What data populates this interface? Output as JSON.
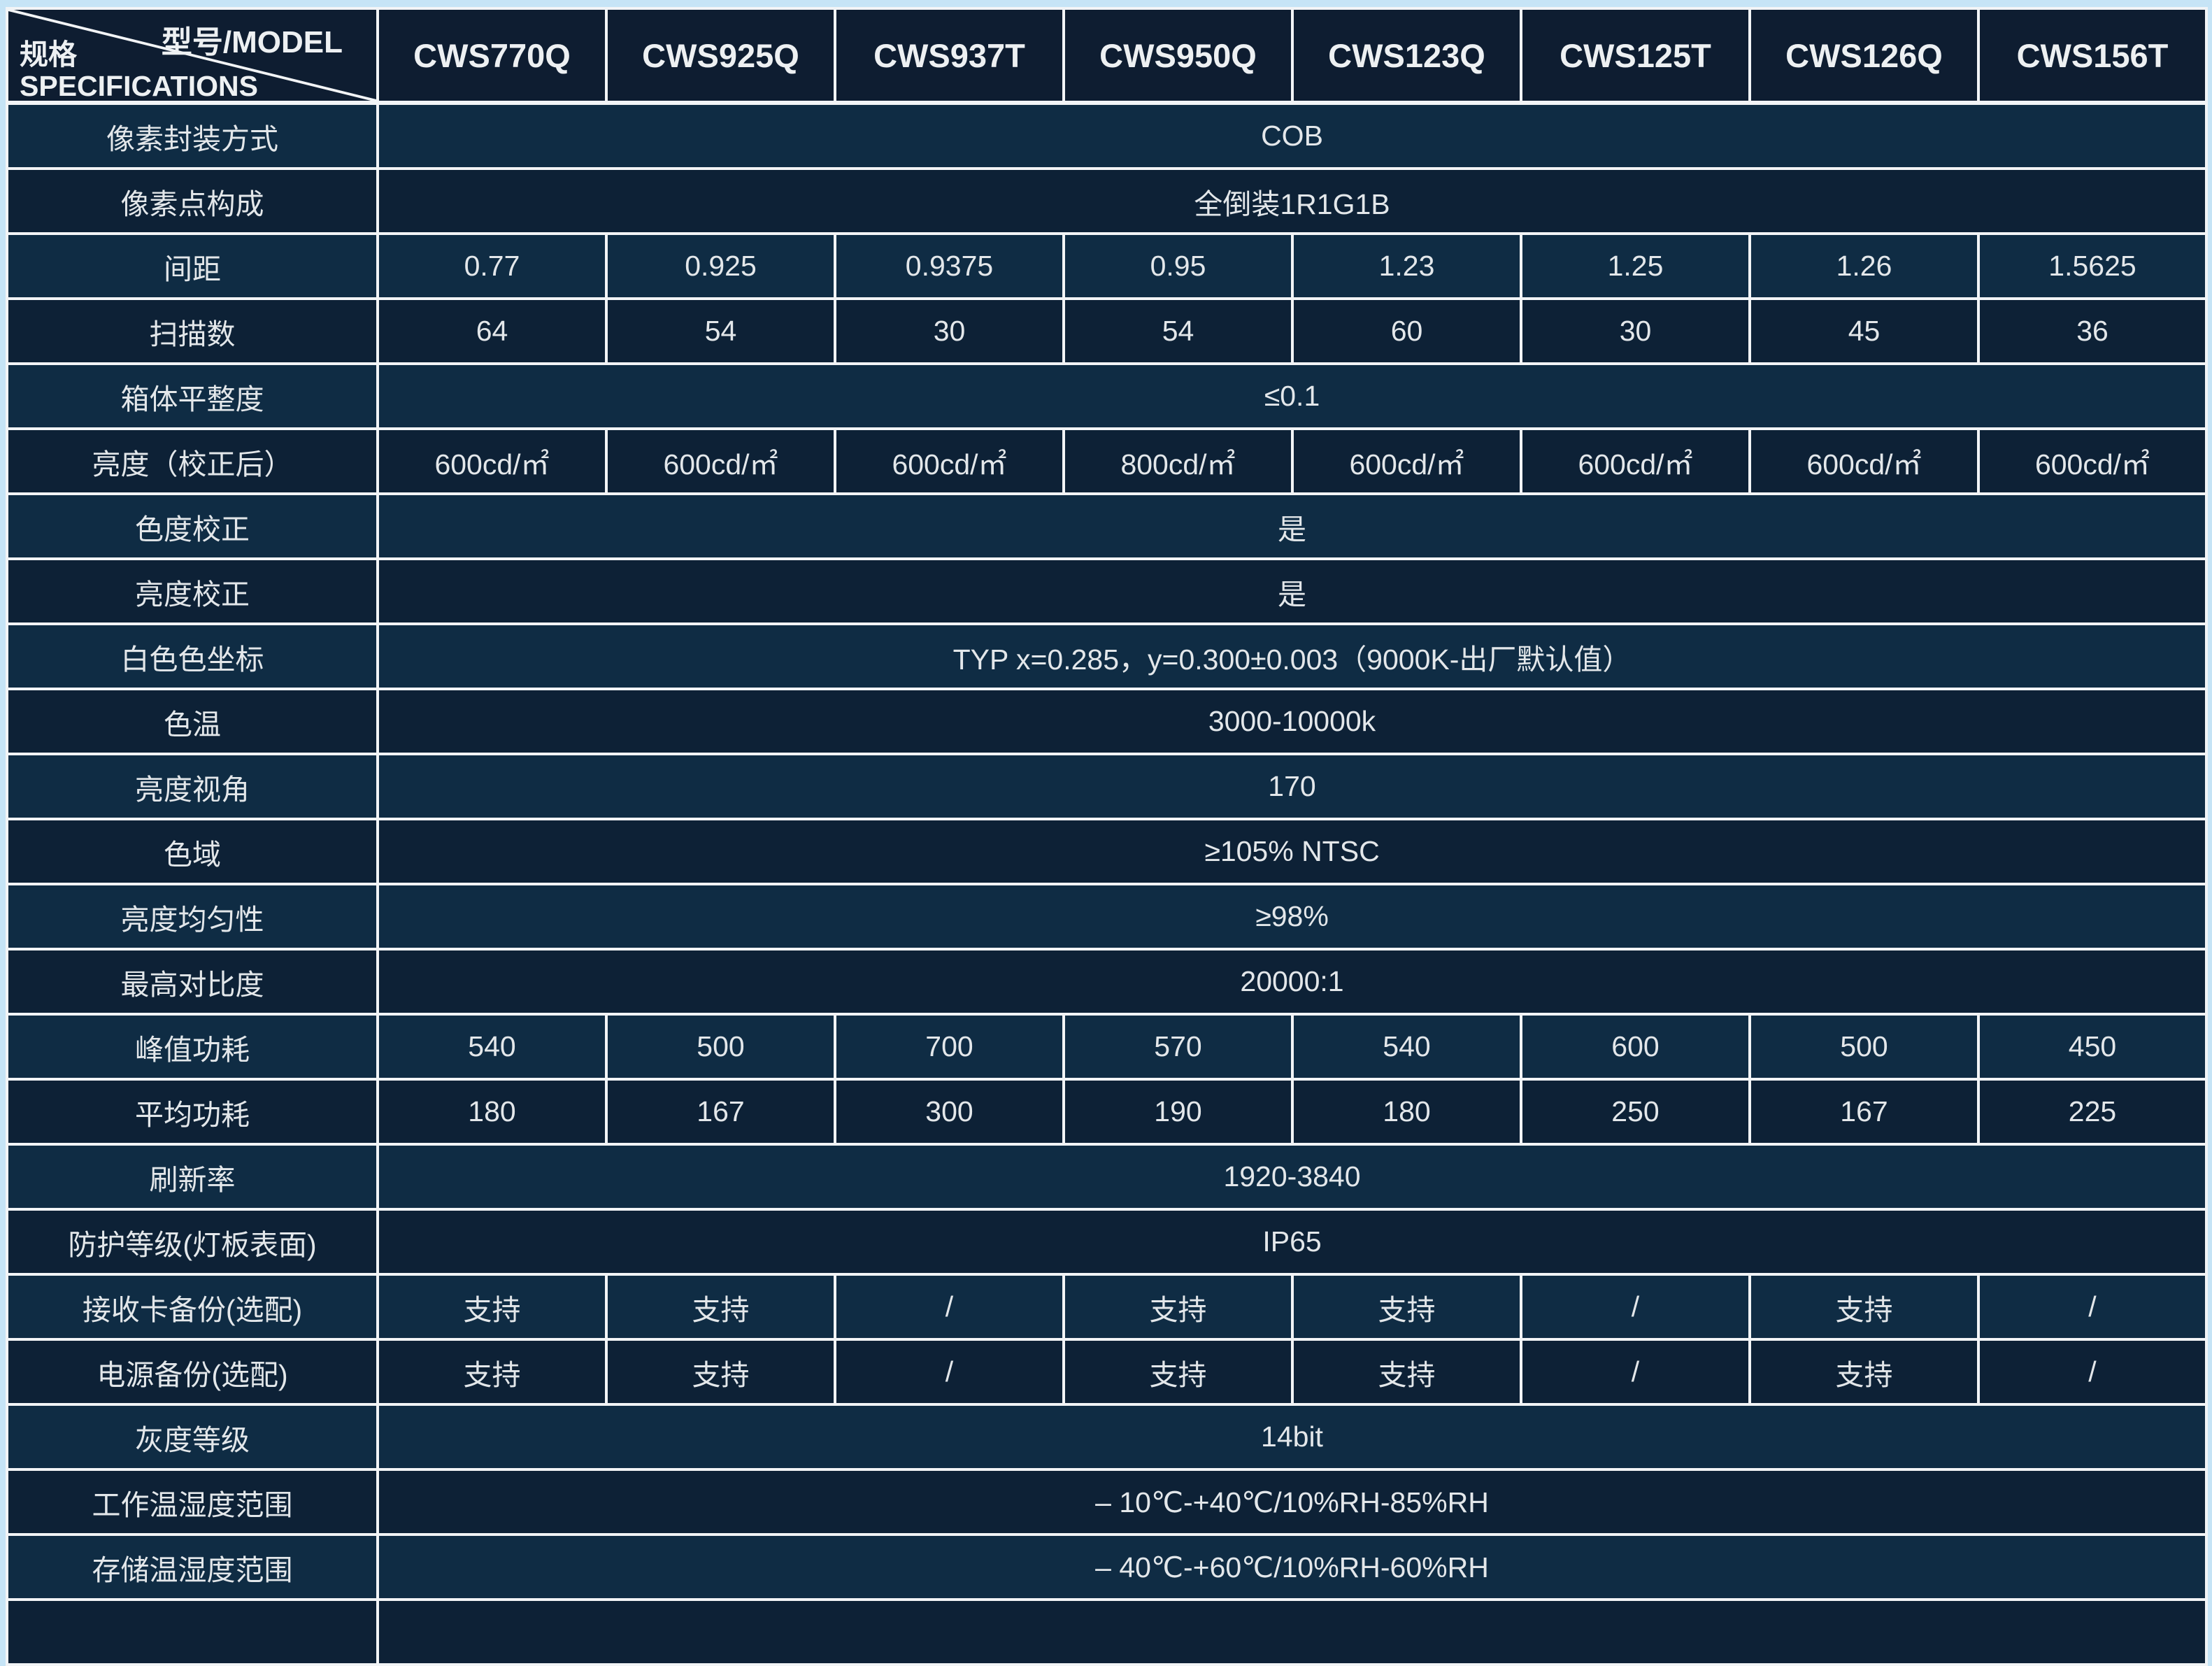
{
  "colors": {
    "outer_frame": "#c6e4f6",
    "header_bg": "#0e1d31",
    "row_light_bg": "#0f2c44",
    "row_dark_bg": "#0d2136",
    "grid_line": "#f2f4f6",
    "text": "#e3e7ea"
  },
  "table": {
    "corner": {
      "top_right": "型号/MODEL",
      "left_line1": "规格",
      "left_line2": "SPECIFICATIONS"
    },
    "models": [
      "CWS770Q",
      "CWS925Q",
      "CWS937T",
      "CWS950Q",
      "CWS123Q",
      "CWS125T",
      "CWS126Q",
      "CWS156T"
    ],
    "rows": [
      {
        "label": "像素封装方式",
        "value": "COB"
      },
      {
        "label": "像素点构成",
        "value": "全倒装1R1G1B"
      },
      {
        "label": "间距",
        "values": [
          "0.77",
          "0.925",
          "0.9375",
          "0.95",
          "1.23",
          "1.25",
          "1.26",
          "1.5625"
        ]
      },
      {
        "label": "扫描数",
        "values": [
          "64",
          "54",
          "30",
          "54",
          "60",
          "30",
          "45",
          "36"
        ]
      },
      {
        "label": "箱体平整度",
        "value": "≤0.1"
      },
      {
        "label": "亮度（校正后）",
        "values": [
          "600cd/㎡",
          "600cd/㎡",
          "600cd/㎡",
          "800cd/㎡",
          "600cd/㎡",
          "600cd/㎡",
          "600cd/㎡",
          "600cd/㎡"
        ]
      },
      {
        "label": "色度校正",
        "value": "是"
      },
      {
        "label": "亮度校正",
        "value": "是"
      },
      {
        "label": "白色色坐标",
        "value": "TYP x=0.285，y=0.300±0.003（9000K-出厂默认值）"
      },
      {
        "label": "色温",
        "value": "3000-10000k"
      },
      {
        "label": "亮度视角",
        "value": "170"
      },
      {
        "label": "色域",
        "value": "≥105% NTSC"
      },
      {
        "label": "亮度均匀性",
        "value": "≥98%"
      },
      {
        "label": "最高对比度",
        "value": "20000:1"
      },
      {
        "label": "峰值功耗",
        "values": [
          "540",
          "500",
          "700",
          "570",
          "540",
          "600",
          "500",
          "450"
        ]
      },
      {
        "label": "平均功耗",
        "values": [
          "180",
          "167",
          "300",
          "190",
          "180",
          "250",
          "167",
          "225"
        ]
      },
      {
        "label": "刷新率",
        "value": "1920-3840"
      },
      {
        "label": "防护等级(灯板表面)",
        "value": "IP65"
      },
      {
        "label": "接收卡备份(选配)",
        "values": [
          "支持",
          "支持",
          "/",
          "支持",
          "支持",
          "/",
          "支持",
          "/"
        ]
      },
      {
        "label": "电源备份(选配)",
        "values": [
          "支持",
          "支持",
          "/",
          "支持",
          "支持",
          "/",
          "支持",
          "/"
        ]
      },
      {
        "label": "灰度等级",
        "value": "14bit"
      },
      {
        "label": "工作温湿度范围",
        "value": "– 10℃-+40℃/10%RH-85%RH"
      },
      {
        "label": "存储温湿度范围",
        "value": "– 40℃-+60℃/10%RH-60%RH"
      },
      {
        "label": "",
        "value": ""
      }
    ]
  }
}
